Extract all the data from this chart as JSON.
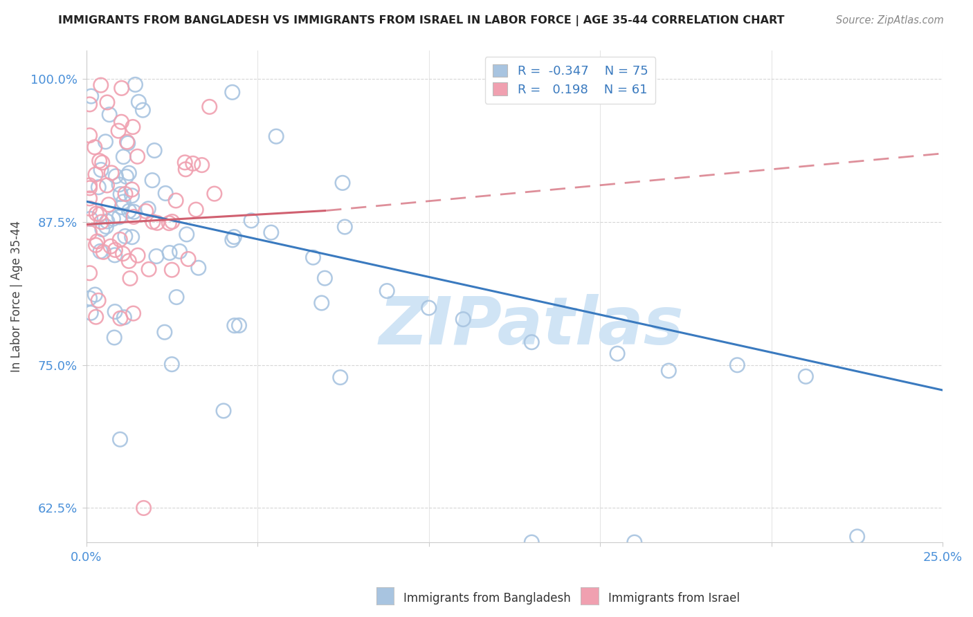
{
  "title": "IMMIGRANTS FROM BANGLADESH VS IMMIGRANTS FROM ISRAEL IN LABOR FORCE | AGE 35-44 CORRELATION CHART",
  "source": "Source: ZipAtlas.com",
  "ylabel": "In Labor Force | Age 35-44",
  "xlim": [
    0.0,
    0.25
  ],
  "ylim": [
    0.595,
    1.025
  ],
  "R_bangladesh": -0.347,
  "N_bangladesh": 75,
  "R_israel": 0.198,
  "N_israel": 61,
  "color_bangladesh": "#a8c4e0",
  "color_israel": "#f0a0b0",
  "line_color_bangladesh": "#3a7abf",
  "line_color_israel": "#d06070",
  "watermark": "ZIPatlas",
  "watermark_color": "#d0e4f5",
  "bangladesh_line": [
    [
      0.0,
      0.893
    ],
    [
      0.25,
      0.728
    ]
  ],
  "israel_line_solid": [
    [
      0.0,
      0.873
    ],
    [
      0.07,
      0.885
    ]
  ],
  "israel_line_dashed": [
    [
      0.07,
      0.885
    ],
    [
      0.25,
      0.935
    ]
  ]
}
